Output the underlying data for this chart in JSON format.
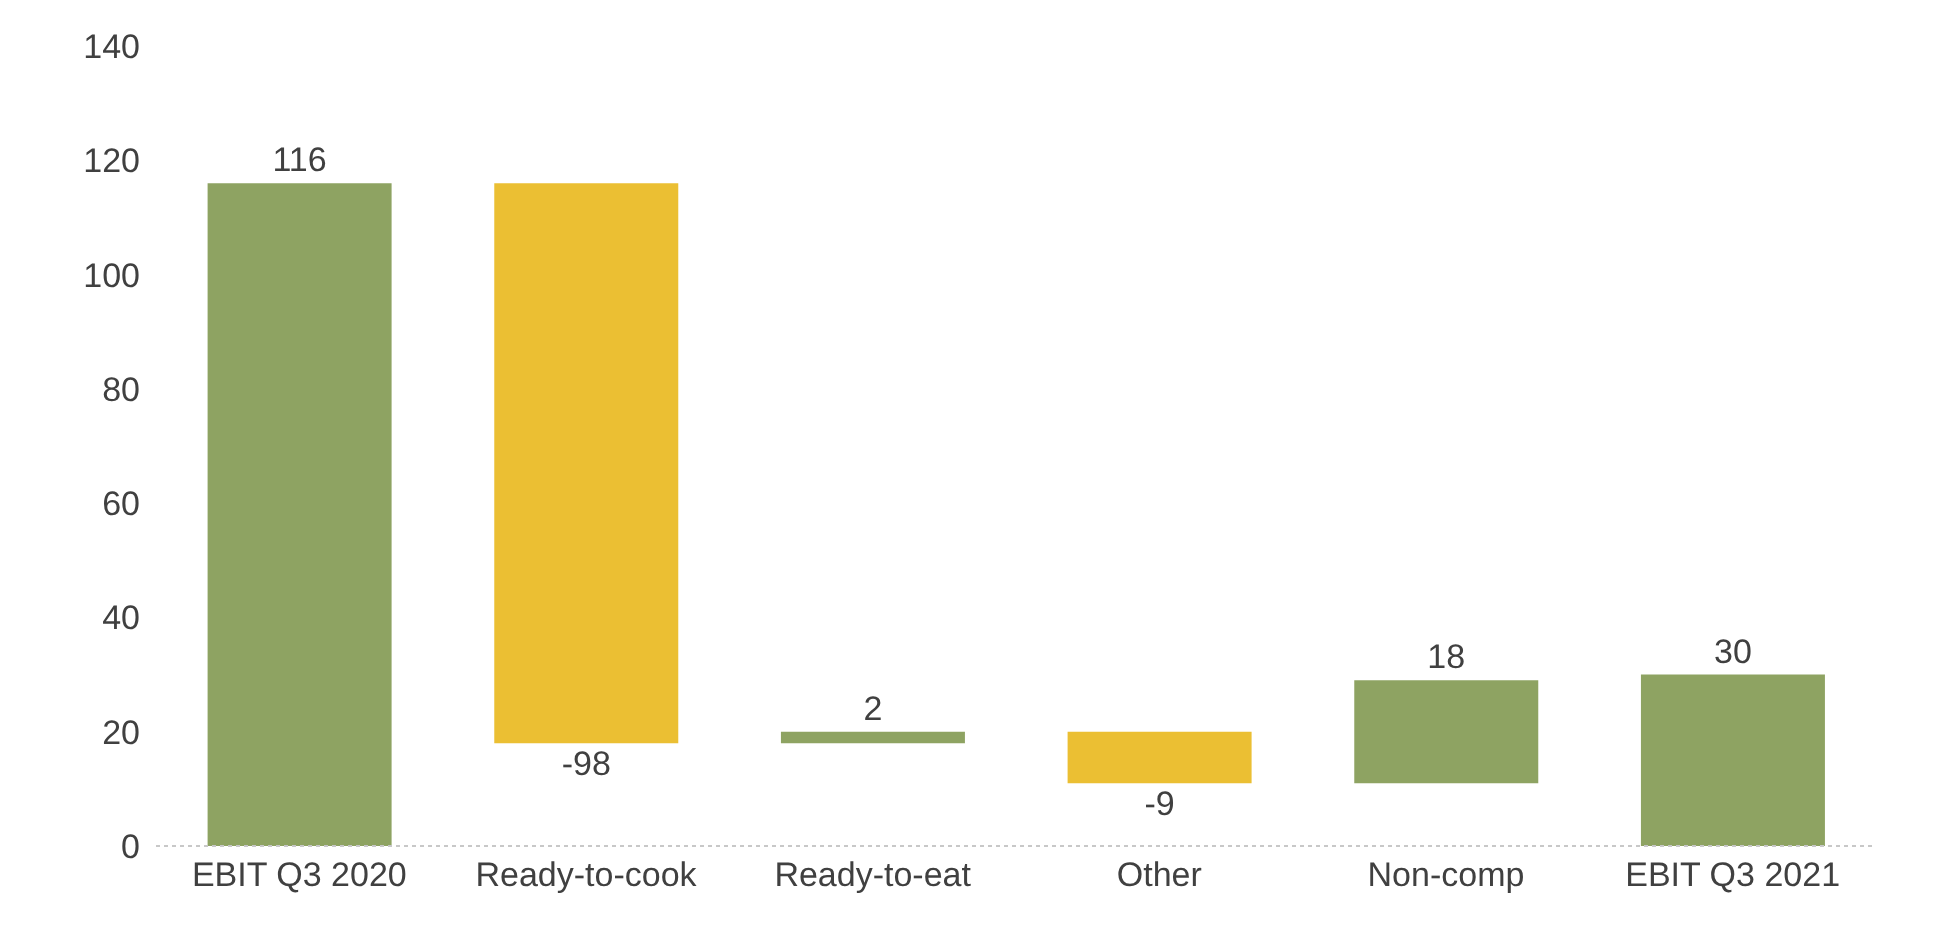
{
  "chart_data": {
    "type": "bar",
    "categories": [
      "EBIT Q3 2020",
      "Ready-to-cook",
      "Ready-to-eat",
      "Other",
      "Non-comp",
      "EBIT Q3 2021"
    ],
    "values": [
      116,
      -98,
      2,
      -9,
      18,
      30
    ],
    "base": [
      0,
      116,
      18,
      20,
      11,
      0
    ],
    "colors": [
      "#8ea362",
      "#ebbf33",
      "#8ea362",
      "#ebbf33",
      "#8ea362",
      "#8ea362"
    ],
    "ylim": [
      0,
      140
    ],
    "yticks": [
      0,
      20,
      40,
      60,
      80,
      100,
      120,
      140
    ],
    "data_labels": true,
    "grid": false
  }
}
